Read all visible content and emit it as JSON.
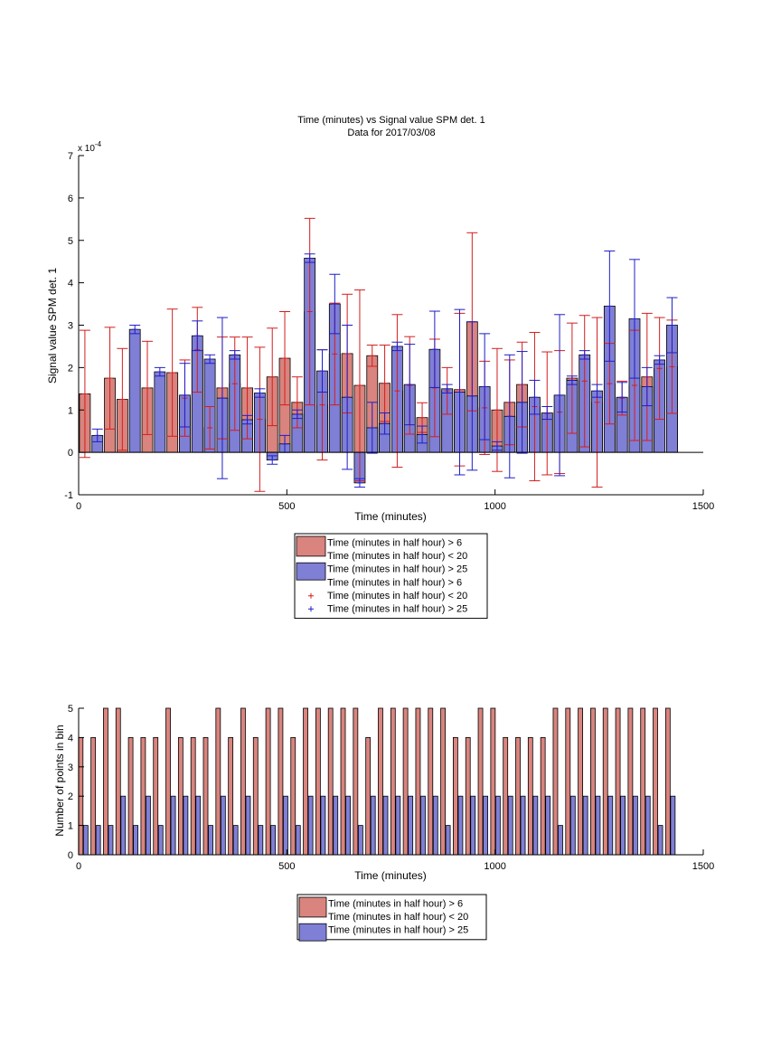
{
  "figure": {
    "background": "#ffffff",
    "colors": {
      "bar_red": "#d9847e",
      "bar_blue": "#7f7fd6",
      "err_red": "#d31e1e",
      "err_blue": "#1e1ec8"
    }
  },
  "chart_data": [
    {
      "type": "bar",
      "title": "Time (minutes) vs Signal value SPM det. 1",
      "subtitle": "Data for 2017/03/08",
      "xlabel": "Time (minutes)",
      "ylabel": "Signal value SPM det. 1",
      "y_exponent_label": "x 10",
      "y_exponent_power": "-4",
      "xlim": [
        0,
        1500
      ],
      "ylim": [
        -1,
        7
      ],
      "xticks": [
        "0",
        "500",
        "1000",
        "1500"
      ],
      "yticks": [
        "-1",
        "0",
        "1",
        "2",
        "3",
        "4",
        "5",
        "6",
        "7"
      ],
      "grid": false,
      "legend_position": "below",
      "legend": [
        {
          "label": "Time (minutes in half hour) > 6",
          "kind": "bar",
          "color": "#d9847e"
        },
        {
          "label": "Time (minutes in half hour) < 20",
          "kind": "blank"
        },
        {
          "label": "Time (minutes in half hour) > 25",
          "kind": "bar",
          "color": "#7f7fd6"
        },
        {
          "label": "Time (minutes in half hour) > 6",
          "kind": "blank"
        },
        {
          "label": "Time (minutes in half hour) < 20",
          "kind": "marker",
          "color": "#d31e1e"
        },
        {
          "label": "Time (minutes in half hour) > 25",
          "kind": "marker",
          "color": "#1e1ec8"
        }
      ],
      "series": [
        {
          "color": "#d9847e",
          "err_color": "#d31e1e",
          "x": [
            15,
            75,
            105,
            165,
            225,
            255,
            285,
            315,
            345,
            375,
            405,
            435,
            465,
            495,
            525,
            555,
            585,
            615,
            645,
            675,
            705,
            735,
            765,
            795,
            825,
            855,
            885,
            915,
            945,
            975,
            1005,
            1035,
            1065,
            1095,
            1125,
            1155,
            1185,
            1215,
            1245,
            1275,
            1305,
            1335,
            1365,
            1395,
            1425
          ],
          "values": [
            1.38,
            1.75,
            1.25,
            1.52,
            1.88,
            1.28,
            2.42,
            0.58,
            1.52,
            1.62,
            1.52,
            0.78,
            1.78,
            2.22,
            1.18,
            3.32,
            1.12,
            2.32,
            2.33,
            1.58,
            2.28,
            1.63,
            1.45,
            1.58,
            0.82,
            1.52,
            1.45,
            1.48,
            3.08,
            1.05,
            1.0,
            1.18,
            1.6,
            1.08,
            0.92,
            0.95,
            1.75,
            1.68,
            1.18,
            1.62,
            1.28,
            1.58,
            1.78,
            1.98,
            2.02
          ],
          "err": [
            1.5,
            1.2,
            1.2,
            1.1,
            1.5,
            0.9,
            1.0,
            0.5,
            1.2,
            1.1,
            1.2,
            1.7,
            1.15,
            1.1,
            0.6,
            2.2,
            1.3,
            1.2,
            1.4,
            2.25,
            0.25,
            0.9,
            1.8,
            1.15,
            0.35,
            1.15,
            0.55,
            1.8,
            2.1,
            1.1,
            1.45,
            1.0,
            1.0,
            1.75,
            1.45,
            1.45,
            1.3,
            1.55,
            2.0,
            0.95,
            0.4,
            1.3,
            1.5,
            1.2,
            1.1
          ]
        },
        {
          "color": "#7f7fd6",
          "err_color": "#1e1ec8",
          "x": [
            45,
            135,
            195,
            255,
            285,
            315,
            345,
            375,
            405,
            435,
            465,
            495,
            525,
            555,
            585,
            615,
            645,
            675,
            705,
            735,
            765,
            795,
            825,
            855,
            885,
            915,
            945,
            975,
            1005,
            1035,
            1065,
            1095,
            1125,
            1155,
            1185,
            1215,
            1245,
            1275,
            1305,
            1335,
            1365,
            1395,
            1425
          ],
          "values": [
            0.4,
            2.9,
            1.9,
            1.35,
            2.75,
            2.2,
            1.28,
            2.3,
            0.77,
            1.4,
            -0.18,
            0.2,
            0.9,
            4.58,
            1.92,
            3.5,
            1.3,
            -0.72,
            0.58,
            0.68,
            2.5,
            1.6,
            0.42,
            2.43,
            1.5,
            1.42,
            1.33,
            1.55,
            0.15,
            0.85,
            1.18,
            1.3,
            0.93,
            1.35,
            1.7,
            2.3,
            1.45,
            3.45,
            1.3,
            3.15,
            1.55,
            2.18,
            3.0
          ],
          "err": [
            0.15,
            0.1,
            0.1,
            0.75,
            0.35,
            0.1,
            1.9,
            0.1,
            0.1,
            0.1,
            0.1,
            0.2,
            0.1,
            0.1,
            0.5,
            0.7,
            1.7,
            0.1,
            0.6,
            0.25,
            0.1,
            0.95,
            0.2,
            0.9,
            0.1,
            1.95,
            1.75,
            1.25,
            0.1,
            1.45,
            1.2,
            0.4,
            0.15,
            1.9,
            0.1,
            0.1,
            0.15,
            1.3,
            0.35,
            1.4,
            0.45,
            0.1,
            0.65
          ]
        }
      ]
    },
    {
      "type": "bar",
      "title": "",
      "xlabel": "Time (minutes)",
      "ylabel": "Number of points in bin",
      "xlim": [
        0,
        1500
      ],
      "ylim": [
        0,
        5
      ],
      "xticks": [
        "0",
        "500",
        "1000",
        "1500"
      ],
      "yticks": [
        "0",
        "1",
        "2",
        "3",
        "4",
        "5"
      ],
      "grid": false,
      "legend_position": "below",
      "legend": [
        {
          "label": "Time (minutes in half hour) > 6",
          "kind": "bar",
          "color": "#d9847e"
        },
        {
          "label": "Time (minutes in half hour) < 20",
          "kind": "blank"
        },
        {
          "label": "Time (minutes in half hour) > 25",
          "kind": "bar",
          "color": "#7f7fd6"
        }
      ],
      "series": [
        {
          "color": "#d9847e",
          "x": [
            5,
            35,
            65,
            95,
            125,
            155,
            185,
            215,
            245,
            275,
            305,
            335,
            365,
            395,
            425,
            455,
            485,
            515,
            545,
            575,
            605,
            635,
            665,
            695,
            725,
            755,
            785,
            815,
            845,
            875,
            905,
            935,
            965,
            995,
            1025,
            1055,
            1085,
            1115,
            1145,
            1175,
            1205,
            1235,
            1265,
            1295,
            1325,
            1355,
            1385,
            1415
          ],
          "values": [
            4,
            4,
            5,
            5,
            4,
            4,
            4,
            5,
            4,
            4,
            4,
            5,
            4,
            5,
            4,
            5,
            5,
            4,
            5,
            5,
            5,
            5,
            5,
            4,
            5,
            5,
            5,
            5,
            5,
            5,
            4,
            4,
            5,
            5,
            4,
            4,
            4,
            4,
            5,
            5,
            5,
            5,
            5,
            5,
            5,
            5,
            5,
            5
          ]
        },
        {
          "color": "#7f7fd6",
          "x": [
            17,
            47,
            77,
            107,
            137,
            167,
            197,
            227,
            257,
            287,
            317,
            347,
            377,
            407,
            437,
            467,
            497,
            527,
            557,
            587,
            617,
            647,
            677,
            707,
            737,
            767,
            797,
            827,
            857,
            887,
            917,
            947,
            977,
            1007,
            1037,
            1067,
            1097,
            1127,
            1157,
            1187,
            1217,
            1247,
            1277,
            1307,
            1337,
            1367,
            1397,
            1427
          ],
          "values": [
            1,
            1,
            1,
            2,
            1,
            2,
            1,
            2,
            2,
            2,
            1,
            2,
            1,
            2,
            1,
            1,
            2,
            1,
            2,
            2,
            2,
            2,
            1,
            2,
            2,
            2,
            2,
            2,
            2,
            1,
            2,
            2,
            2,
            2,
            2,
            2,
            2,
            2,
            1,
            2,
            2,
            2,
            2,
            2,
            2,
            2,
            1,
            2
          ]
        }
      ]
    }
  ]
}
